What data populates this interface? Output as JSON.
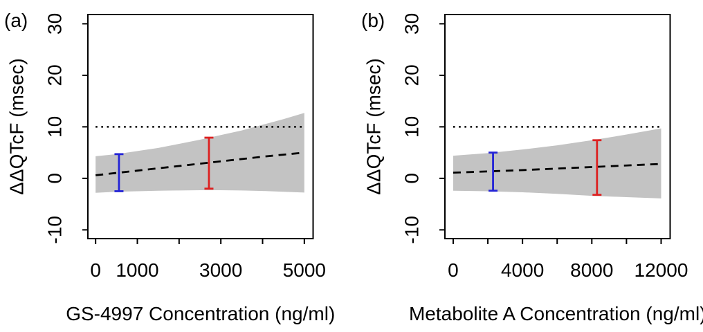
{
  "figure": {
    "background": "#ffffff",
    "text_color": "#000000",
    "axis_color": "#000000"
  },
  "chart_data": [
    {
      "type": "area",
      "panel_label": "(a)",
      "xlabel": "GS-4997 Concentration (ng/ml)",
      "ylabel": "ΔΔQTcF (msec)",
      "xlim": [
        -185,
        5210
      ],
      "ylim": [
        -11.7,
        31.8
      ],
      "grid": false,
      "legend": "none",
      "xticks": [
        0,
        1000,
        2000,
        3000,
        4000,
        5000
      ],
      "xtick_labels": [
        "0",
        "1000",
        "",
        "3000",
        "",
        "5000"
      ],
      "yticks": [
        -10,
        0,
        10,
        20,
        30
      ],
      "ytick_labels": [
        "-10",
        "0",
        "10",
        "20",
        "30"
      ],
      "threshold": {
        "value": 10,
        "style": "dotted",
        "color": "#000000"
      },
      "band": {
        "label": "confidence-band",
        "fill": "#c3c3c3",
        "x": [
          0,
          500,
          1000,
          1500,
          2000,
          2500,
          3000,
          3500,
          4000,
          4500,
          5000
        ],
        "upper": [
          4.3,
          4.7,
          5.3,
          5.9,
          6.7,
          7.5,
          8.4,
          9.3,
          10.4,
          11.5,
          12.7
        ],
        "lower": [
          -2.8,
          -2.6,
          -2.5,
          -2.4,
          -2.35,
          -2.3,
          -2.3,
          -2.35,
          -2.45,
          -2.6,
          -2.75
        ]
      },
      "mean_line": {
        "style": "dashed",
        "color": "#000000",
        "x": [
          0,
          1000,
          2000,
          3000,
          4000,
          5000
        ],
        "y": [
          0.6,
          1.5,
          2.4,
          3.3,
          4.2,
          5.0
        ]
      },
      "error_bars": [
        {
          "name": "blue-error-bar",
          "color": "#2323d6",
          "x": 560,
          "low": -2.5,
          "high": 4.7
        },
        {
          "name": "red-error-bar",
          "color": "#dd2020",
          "x": 2715,
          "low": -2.0,
          "high": 7.9
        }
      ]
    },
    {
      "type": "area",
      "panel_label": "(b)",
      "xlabel": "Metabolite A Concentration (ng/ml)",
      "ylabel": "ΔΔQTcF (msec)",
      "xlim": [
        -478,
        12520
      ],
      "ylim": [
        -11.7,
        31.8
      ],
      "grid": false,
      "legend": "none",
      "xticks": [
        0,
        2000,
        4000,
        6000,
        8000,
        10000,
        12000
      ],
      "xtick_labels": [
        "0",
        "",
        "4000",
        "",
        "8000",
        "",
        "12000"
      ],
      "yticks": [
        -10,
        0,
        10,
        20,
        30
      ],
      "ytick_labels": [
        "-10",
        "0",
        "10",
        "20",
        "30"
      ],
      "threshold": {
        "value": 10,
        "style": "dotted",
        "color": "#000000"
      },
      "band": {
        "label": "confidence-band",
        "fill": "#c3c3c3",
        "x": [
          0,
          2000,
          4000,
          6000,
          8000,
          10000,
          12000
        ],
        "upper": [
          4.4,
          4.9,
          5.6,
          6.4,
          7.4,
          8.5,
          9.7
        ],
        "lower": [
          -2.4,
          -2.5,
          -2.7,
          -3.0,
          -3.4,
          -3.65,
          -3.9
        ]
      },
      "mean_line": {
        "style": "dashed",
        "color": "#000000",
        "x": [
          0,
          2000,
          4000,
          6000,
          8000,
          10000,
          12000
        ],
        "y": [
          1.1,
          1.35,
          1.6,
          1.9,
          2.2,
          2.5,
          2.8
        ]
      },
      "error_bars": [
        {
          "name": "blue-error-bar",
          "color": "#2323d6",
          "x": 2300,
          "low": -2.4,
          "high": 5.0
        },
        {
          "name": "red-error-bar",
          "color": "#dd2020",
          "x": 8300,
          "low": -3.2,
          "high": 7.4
        }
      ]
    }
  ]
}
